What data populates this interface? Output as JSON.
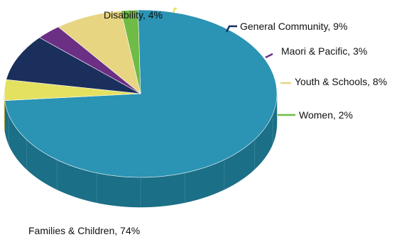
{
  "chart_data": {
    "type": "pie",
    "style": "3d",
    "title": "",
    "slices": [
      {
        "name": "Families & Children",
        "value": 74,
        "label": "Families & Children, 74%",
        "color": "#2b93b4",
        "side_color": "#1b6f86"
      },
      {
        "name": "Disability",
        "value": 4,
        "label": "Disability, 4%",
        "color": "#e4e160",
        "side_color": "#b3b03a"
      },
      {
        "name": "General Community",
        "value": 9,
        "label": "General Community, 9%",
        "color": "#1b2f5c",
        "side_color": "#101d3d"
      },
      {
        "name": "Maori & Pacific",
        "value": 3,
        "label": "Maori & Pacific, 3%",
        "color": "#6b2f84",
        "side_color": "#4a1f5c"
      },
      {
        "name": "Youth & Schools",
        "value": 8,
        "label": "Youth & Schools, 8%",
        "color": "#e7d582",
        "side_color": "#b9a659"
      },
      {
        "name": "Women",
        "value": 2,
        "label": "Women, 2%",
        "color": "#6fbb45",
        "side_color": "#4f8c2e"
      }
    ],
    "legend": "none",
    "labels": "outside-with-leader-lines"
  }
}
